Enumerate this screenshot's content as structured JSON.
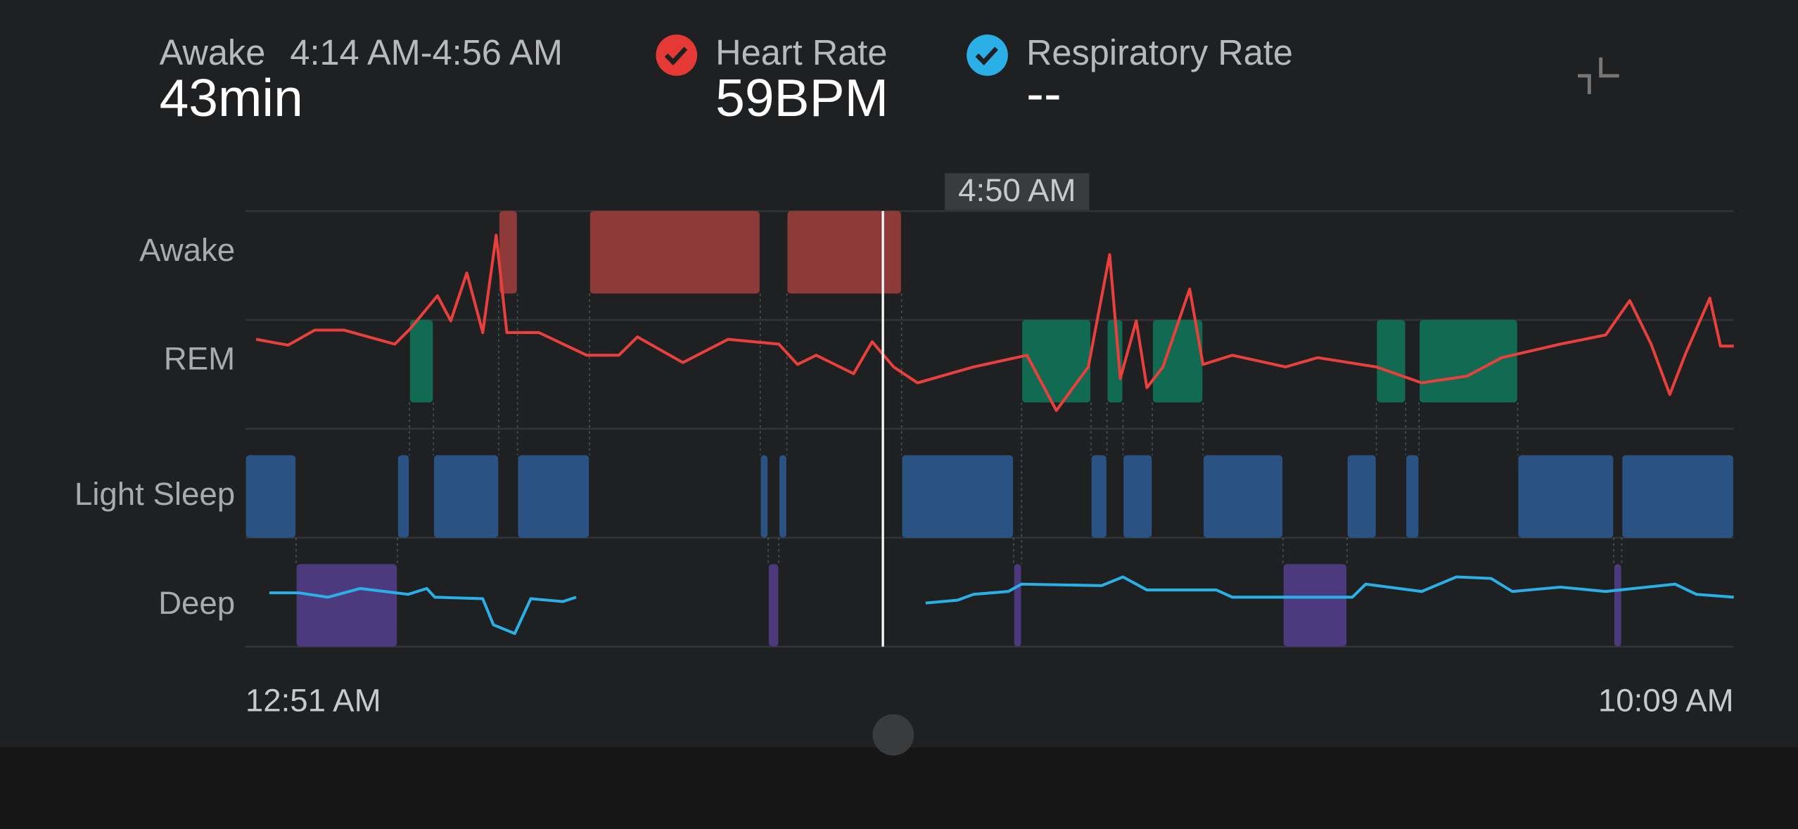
{
  "header": {
    "stage": "Awake",
    "range": "4:14 AM-4:56 AM",
    "duration": "43min",
    "heart_rate_label": "Heart Rate",
    "heart_rate": "59BPM",
    "resp_rate_label": "Respiratory Rate",
    "resp_rate": "--"
  },
  "chart_data": {
    "type": "hypnogram",
    "categories": [
      "Awake",
      "REM",
      "Light Sleep",
      "Deep"
    ],
    "colors": [
      "#8e3a38",
      "#116a52",
      "#2a5384",
      "#4d3a7e"
    ],
    "xlim": [
      0,
      558
    ],
    "xticks": [
      {
        "value": 0,
        "label": "12:51 AM"
      },
      {
        "value": 558,
        "label": "10:09 AM"
      }
    ],
    "cursor": {
      "value": 239,
      "label": "4:50 AM"
    },
    "segments": [
      {
        "stage": 2,
        "start": 0,
        "end": 19
      },
      {
        "stage": 3,
        "start": 19,
        "end": 57
      },
      {
        "stage": 2,
        "start": 57,
        "end": 61.5
      },
      {
        "stage": 1,
        "start": 61.5,
        "end": 70.5
      },
      {
        "stage": 2,
        "start": 70.5,
        "end": 95
      },
      {
        "stage": 0,
        "start": 95,
        "end": 102
      },
      {
        "stage": 2,
        "start": 102,
        "end": 129
      },
      {
        "stage": 0,
        "start": 129,
        "end": 193
      },
      {
        "stage": 2,
        "start": 193,
        "end": 196
      },
      {
        "stage": 3,
        "start": 196,
        "end": 200
      },
      {
        "stage": 2,
        "start": 200,
        "end": 203
      },
      {
        "stage": 0,
        "start": 203,
        "end": 246
      },
      {
        "stage": 2,
        "start": 246,
        "end": 288
      },
      {
        "stage": 3,
        "start": 288,
        "end": 291
      },
      {
        "stage": 1,
        "start": 291,
        "end": 317
      },
      {
        "stage": 2,
        "start": 317,
        "end": 323
      },
      {
        "stage": 1,
        "start": 323,
        "end": 329
      },
      {
        "stage": 2,
        "start": 329,
        "end": 340
      },
      {
        "stage": 1,
        "start": 340,
        "end": 359
      },
      {
        "stage": 2,
        "start": 359,
        "end": 389
      },
      {
        "stage": 3,
        "start": 389,
        "end": 413
      },
      {
        "stage": 2,
        "start": 413,
        "end": 424
      },
      {
        "stage": 1,
        "start": 424,
        "end": 435
      },
      {
        "stage": 2,
        "start": 435,
        "end": 440
      },
      {
        "stage": 1,
        "start": 440,
        "end": 477
      },
      {
        "stage": 2,
        "start": 477,
        "end": 513
      },
      {
        "stage": 3,
        "start": 513,
        "end": 516
      },
      {
        "stage": 2,
        "start": 516,
        "end": 558
      }
    ],
    "heart_rate": {
      "color": "#e8403c",
      "lim": [
        0,
        90
      ],
      "x": [
        4,
        16,
        26,
        37,
        56,
        62,
        72,
        77,
        83,
        89,
        94,
        98,
        110,
        128,
        140,
        147,
        164,
        181,
        200,
        207,
        214,
        228,
        235,
        243,
        252,
        273,
        293,
        304,
        316,
        324,
        328,
        334,
        338,
        344,
        354,
        359,
        370,
        390,
        402,
        424,
        441,
        458,
        471,
        493,
        510,
        519,
        527,
        534,
        540,
        549,
        553,
        558
      ],
      "values": [
        63.5,
        62.3,
        65.4,
        65.4,
        62.5,
        65.8,
        72.5,
        67.3,
        77.2,
        64.9,
        85.0,
        64.9,
        64.9,
        60.2,
        60.2,
        64.0,
        58.7,
        63.5,
        62.5,
        58.3,
        60.2,
        56.4,
        63.0,
        57.8,
        54.5,
        57.8,
        60.2,
        48.8,
        57.8,
        81.0,
        55.4,
        67.3,
        53.5,
        57.8,
        73.9,
        58.3,
        60.2,
        57.8,
        59.7,
        57.8,
        54.5,
        55.9,
        59.7,
        62.5,
        64.4,
        71.5,
        62.5,
        52.1,
        60.6,
        72.0,
        62.1,
        62.1
      ]
    },
    "resp_rate": {
      "color": "#2ab0e6",
      "lim": [
        0,
        30
      ],
      "x": [
        9,
        20,
        31,
        43,
        61,
        68,
        71,
        89,
        93,
        101,
        107,
        119,
        124,
        190,
        255,
        267,
        273,
        286,
        291,
        321,
        329,
        338,
        364,
        370,
        415,
        420,
        441,
        454,
        467,
        475,
        493,
        510,
        536,
        544,
        558
      ],
      "values": [
        3.7,
        3.7,
        3.4,
        4.0,
        3.6,
        4.0,
        3.4,
        3.3,
        1.5,
        0.9,
        3.3,
        3.1,
        3.4,
        null,
        3.0,
        3.2,
        3.6,
        3.8,
        4.3,
        4.2,
        4.8,
        3.9,
        3.9,
        3.4,
        3.4,
        4.3,
        3.8,
        4.8,
        4.7,
        3.8,
        4.1,
        3.8,
        4.3,
        3.6,
        3.4
      ]
    }
  }
}
